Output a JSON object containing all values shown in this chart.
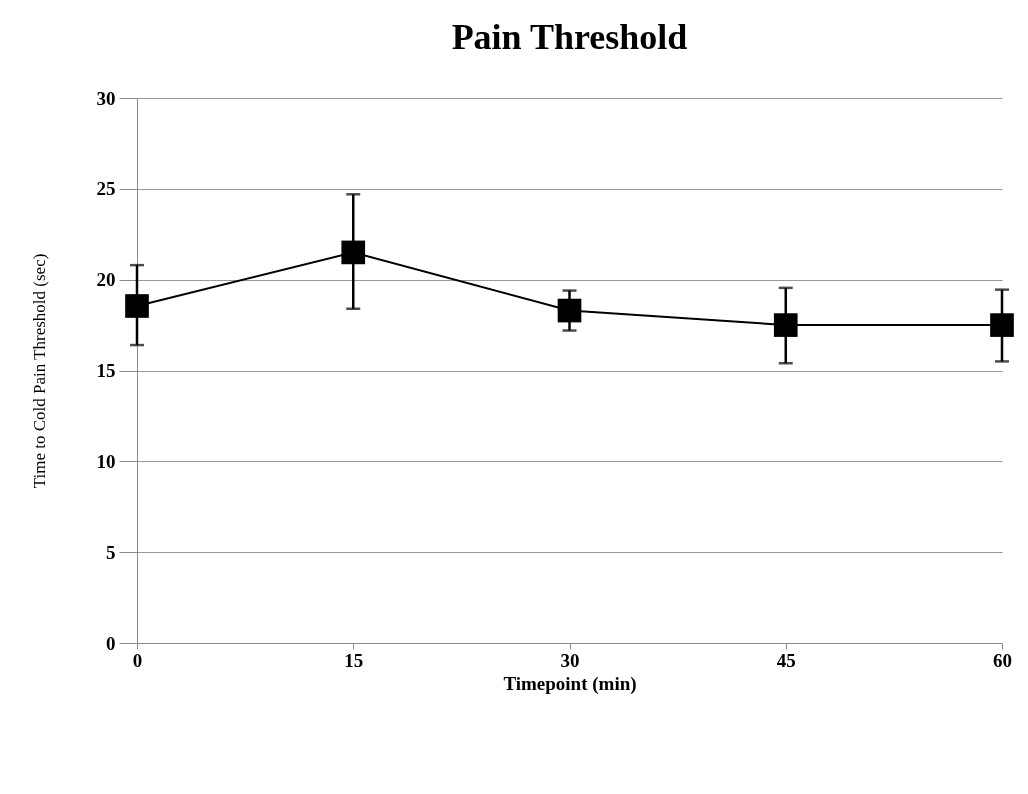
{
  "chart_data": {
    "type": "line",
    "title": "Pain Threshold",
    "xlabel": "Timepoint (min)",
    "ylabel": "Time to Cold Pain Threshold (sec)",
    "x": [
      0,
      15,
      30,
      45,
      60
    ],
    "series": [
      {
        "color": "#000000",
        "values": [
          18.55,
          21.5,
          18.3,
          17.5,
          17.5
        ],
        "errors": [
          [
            16.4,
            20.8
          ],
          [
            18.4,
            24.7
          ],
          [
            17.2,
            19.4
          ],
          [
            15.4,
            19.55
          ],
          [
            15.5,
            19.45
          ]
        ]
      }
    ],
    "xlim": [
      0,
      60
    ],
    "xticks": [
      0,
      15,
      30,
      45,
      60
    ],
    "ylim": [
      0,
      30
    ],
    "yticks": [
      0,
      5,
      10,
      15,
      20,
      25,
      30
    ],
    "grid": "y",
    "marker": "square",
    "line_style": "solid"
  }
}
